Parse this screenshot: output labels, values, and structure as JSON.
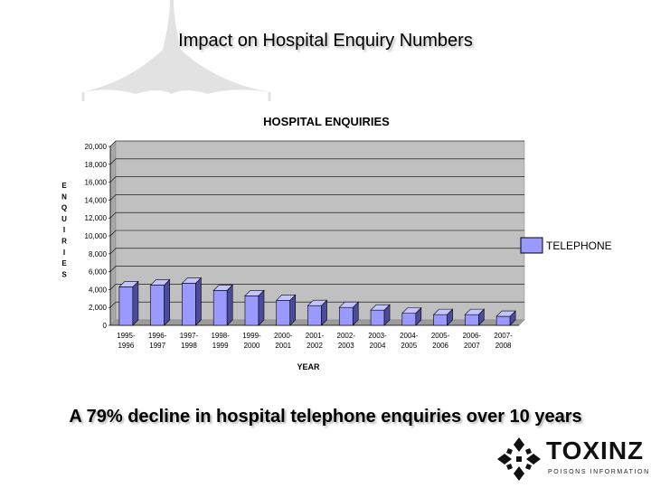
{
  "slide": {
    "title": "Impact on Hospital Enquiry Numbers",
    "caption": "A 79% decline in hospital telephone enquiries over 10 years"
  },
  "logo": {
    "name": "TOXINZ",
    "subtitle": "POISONS INFORMATION"
  },
  "colors": {
    "bar_front": "#9999ff",
    "bar_side": "#4b4b9c",
    "bar_top": "#c4c4ff",
    "plot_bg": "#c0c0c0",
    "gridline": "#000000"
  },
  "chart_data": {
    "type": "bar",
    "title": "HOSPITAL ENQUIRIES",
    "xlabel": "YEAR",
    "ylabel": "ENQUIRIES",
    "ylabel_letters": [
      "E",
      "N",
      "Q",
      "U",
      "I",
      "R",
      "I",
      "E",
      "S"
    ],
    "ylim": [
      0,
      20000
    ],
    "ytick_labels": [
      "0",
      "2,000",
      "4,000",
      "6,000",
      "8,000",
      "10,000",
      "12,000",
      "14,000",
      "16,000",
      "18,000",
      "20,000"
    ],
    "ytick_values": [
      0,
      2000,
      4000,
      6000,
      8000,
      10000,
      12000,
      14000,
      16000,
      18000,
      20000
    ],
    "grid": true,
    "legend_position": "right",
    "categories": [
      [
        "1995-",
        "1996"
      ],
      [
        "1996-",
        "1997"
      ],
      [
        "1997-",
        "1998"
      ],
      [
        "1998-",
        "1999"
      ],
      [
        "1999-",
        "2000"
      ],
      [
        "2000-",
        "2001"
      ],
      [
        "2001-",
        "2002"
      ],
      [
        "2002-",
        "2003"
      ],
      [
        "2003-",
        "2004"
      ],
      [
        "2004-",
        "2005"
      ],
      [
        "2005-",
        "2006"
      ],
      [
        "2006-",
        "2007"
      ],
      [
        "2007-",
        "2008"
      ]
    ],
    "series": [
      {
        "name": "TELEPHONE",
        "values": [
          4300,
          4500,
          4700,
          3900,
          3300,
          2800,
          2200,
          2000,
          1700,
          1350,
          1200,
          1200,
          1000
        ]
      }
    ]
  }
}
